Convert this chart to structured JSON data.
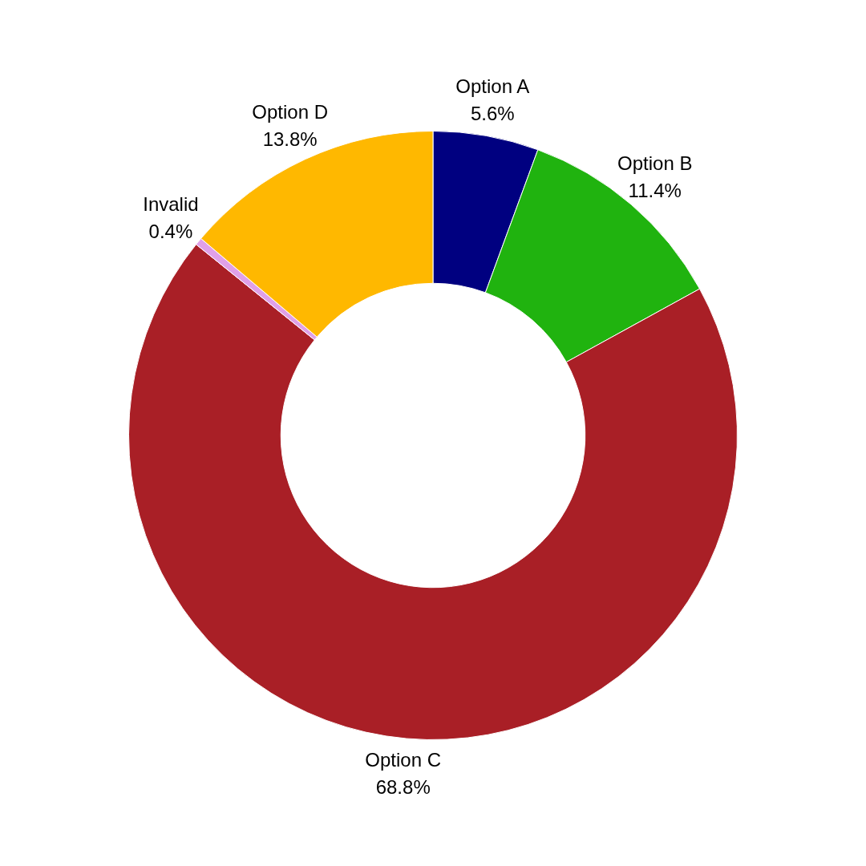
{
  "chart_data": {
    "type": "donut",
    "categories": [
      "Option A",
      "Option B",
      "Option C",
      "Invalid",
      "Option D"
    ],
    "values": [
      5.6,
      11.4,
      68.8,
      0.4,
      13.8
    ],
    "colors": [
      "#000080",
      "#20b30f",
      "#a91f26",
      "#e0a0e8",
      "#ffb800"
    ],
    "value_labels": [
      "5.6%",
      "11.4%",
      "68.8%",
      "0.4%",
      "13.8%"
    ],
    "legend": false
  }
}
